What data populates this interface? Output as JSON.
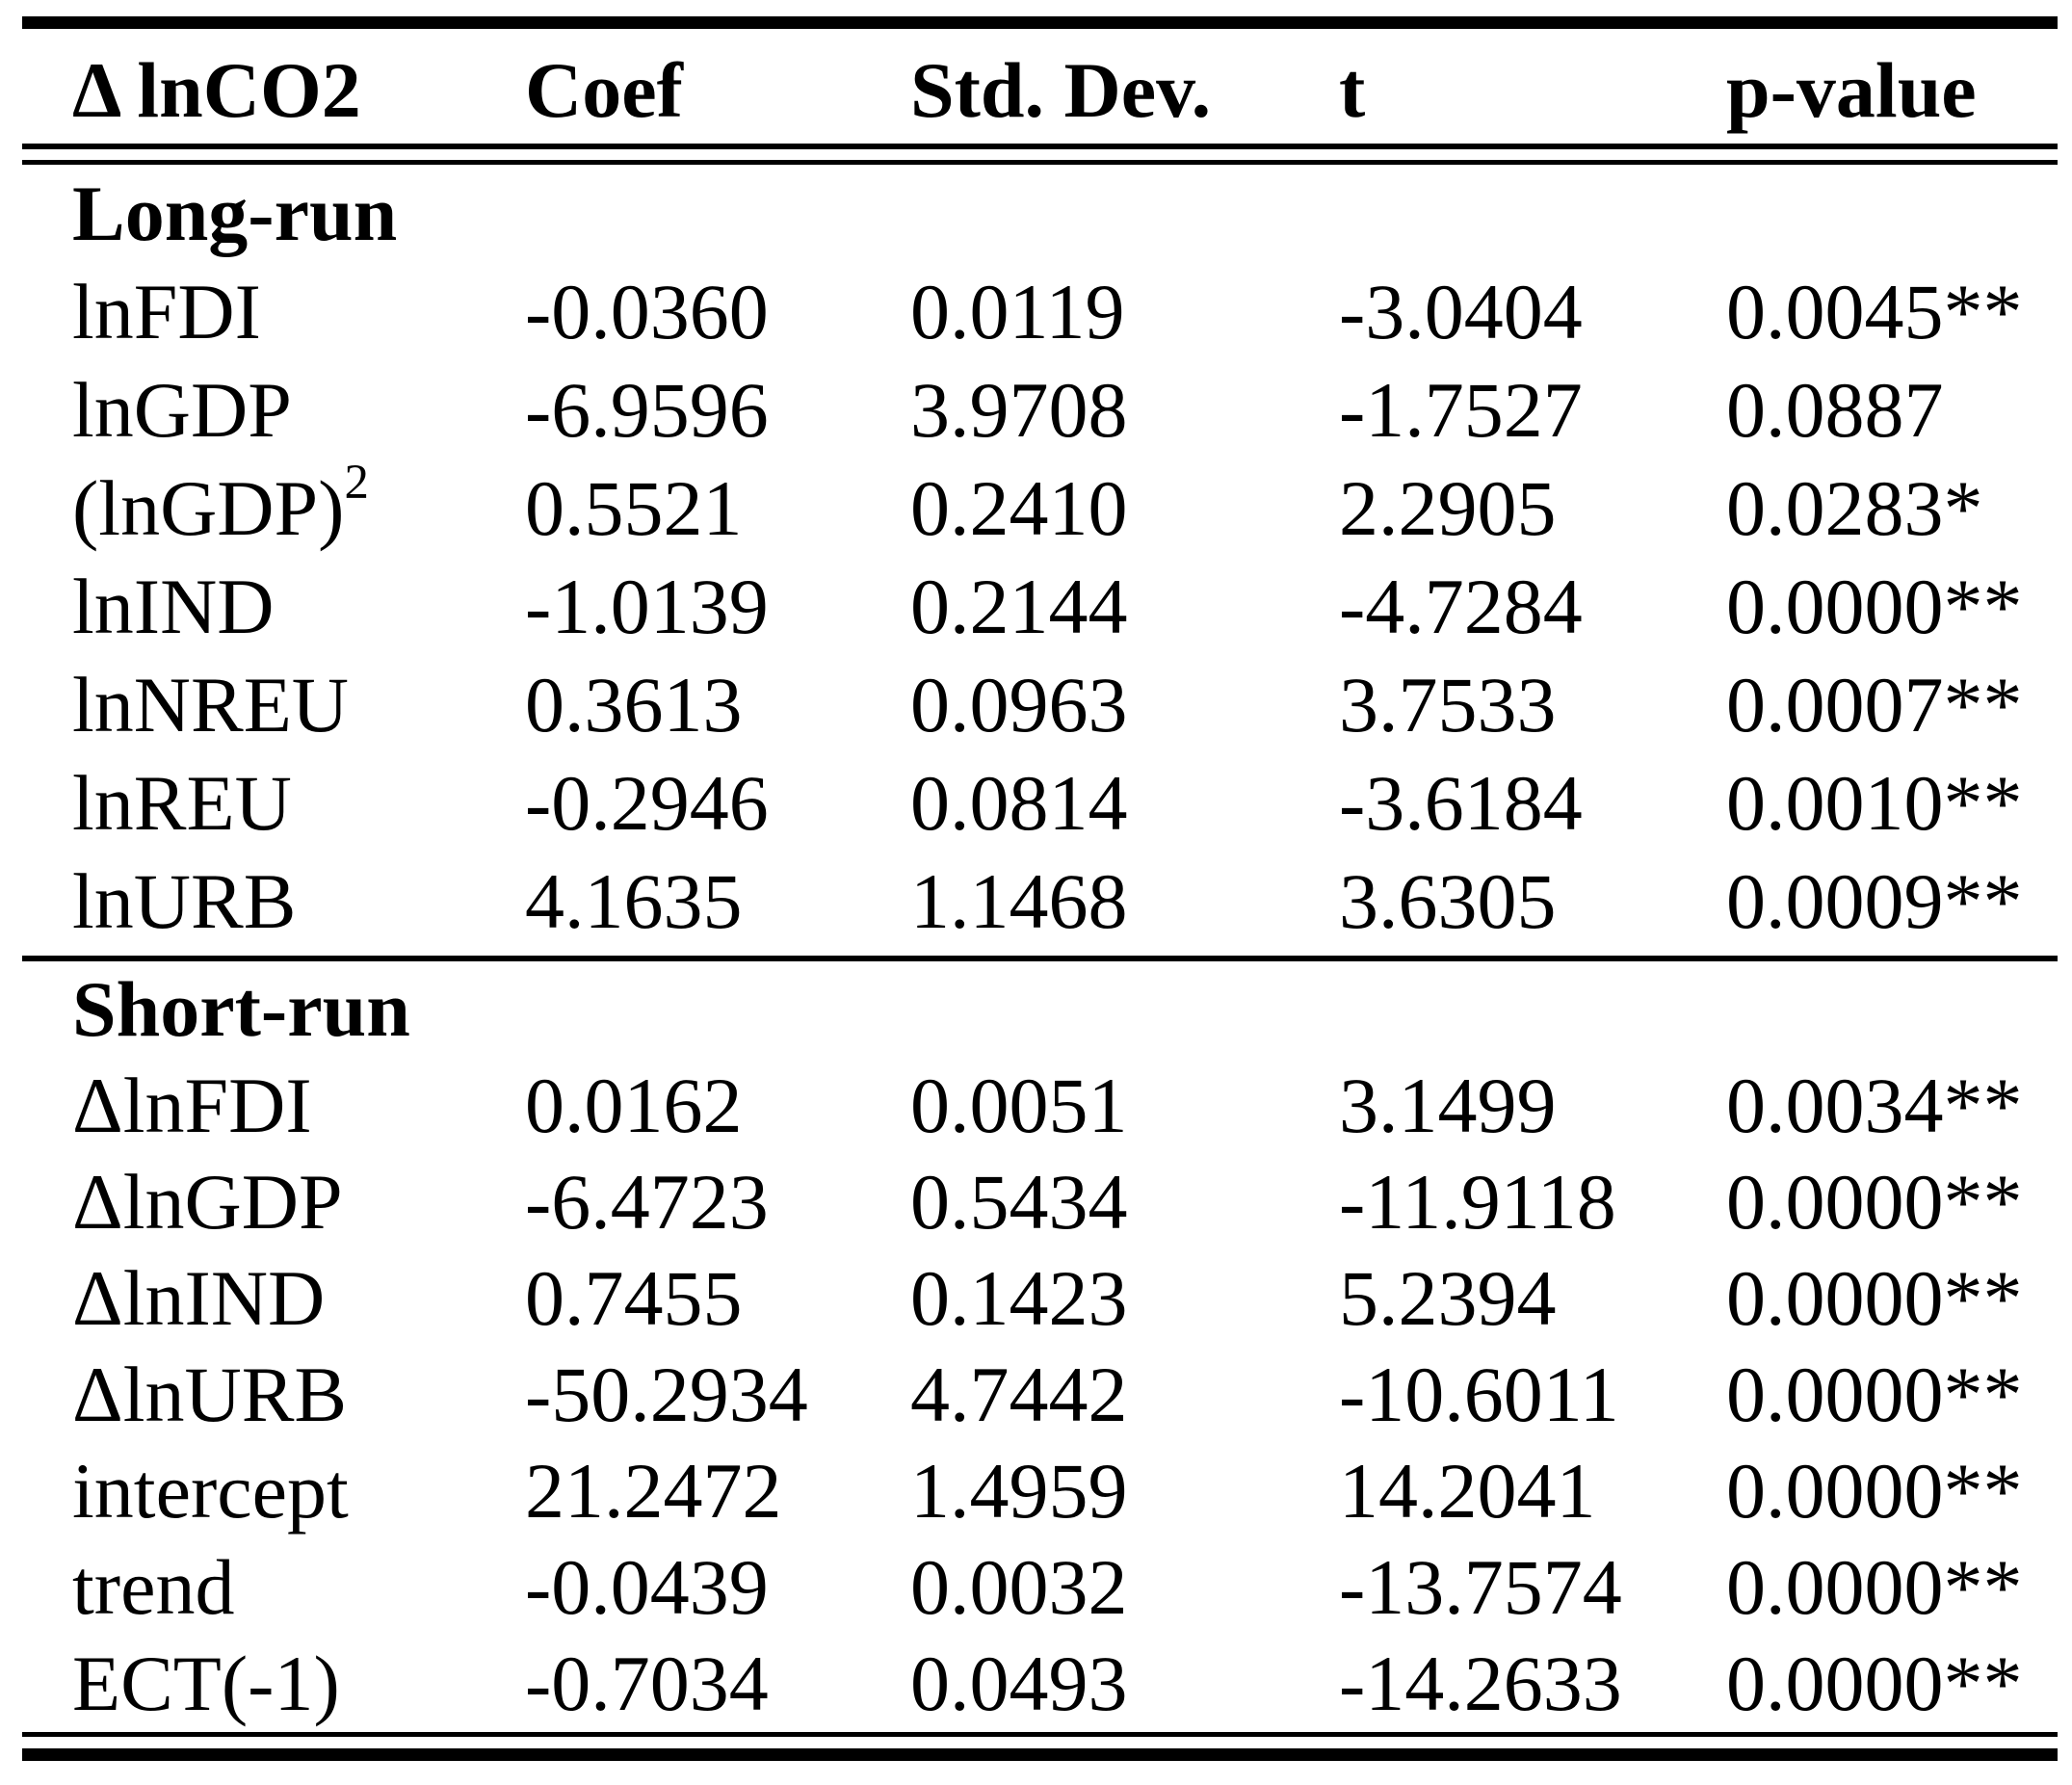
{
  "page": {
    "background": "#ffffff",
    "text_color": "#000000"
  },
  "table": {
    "header": [
      "Δ lnCO2",
      "Coef",
      "Std. Dev.",
      "t",
      "p-value"
    ],
    "sections": [
      {
        "label": "Long-run",
        "rows": [
          {
            "name": "lnFDI",
            "coef": "-0.0360",
            "sd": "0.0119",
            "t": "-3.0404",
            "p": "0.0045**"
          },
          {
            "name": "lnGDP",
            "coef": "-6.9596",
            "sd": "3.9708",
            "t": "-1.7527",
            "p": "0.0887"
          },
          {
            "name": "(lnGDP)",
            "name_sup": "2",
            "coef": "0.5521",
            "sd": "0.2410",
            "t": "2.2905",
            "p": "0.0283*"
          },
          {
            "name": "lnIND",
            "coef": "-1.0139",
            "sd": "0.2144",
            "t": "-4.7284",
            "p": "0.0000**"
          },
          {
            "name": "lnNREU",
            "coef": "0.3613",
            "sd": "0.0963",
            "t": "3.7533",
            "p": "0.0007**"
          },
          {
            "name": "lnREU",
            "coef": "-0.2946",
            "sd": "0.0814",
            "t": "-3.6184",
            "p": "0.0010**"
          },
          {
            "name": "lnURB",
            "coef": "4.1635",
            "sd": "1.1468",
            "t": "3.6305",
            "p": "0.0009**"
          }
        ]
      },
      {
        "label": "Short-run",
        "rows": [
          {
            "name": "ΔlnFDI",
            "coef": "0.0162",
            "sd": "0.0051",
            "t": "3.1499",
            "p": "0.0034**"
          },
          {
            "name": "ΔlnGDP",
            "coef": "-6.4723",
            "sd": "0.5434",
            "t": "-11.9118",
            "p": "0.0000**"
          },
          {
            "name": "ΔlnIND",
            "coef": "0.7455",
            "sd": "0.1423",
            "t": "5.2394",
            "p": "0.0000**"
          },
          {
            "name": "ΔlnURB",
            "coef": "-50.2934",
            "sd": "4.7442",
            "t": "-10.6011",
            "p": "0.0000**"
          },
          {
            "name": "intercept",
            "coef": "21.2472",
            "sd": "1.4959",
            "t": "14.2041",
            "p": "0.0000**"
          },
          {
            "name": "trend",
            "coef": "-0.0439",
            "sd": "0.0032",
            "t": "-13.7574",
            "p": "0.0000**"
          },
          {
            "name": "ECT(-1)",
            "coef": "-0.7034",
            "sd": "0.0493",
            "t": "-14.2633",
            "p": "0.0000**"
          }
        ]
      }
    ]
  }
}
